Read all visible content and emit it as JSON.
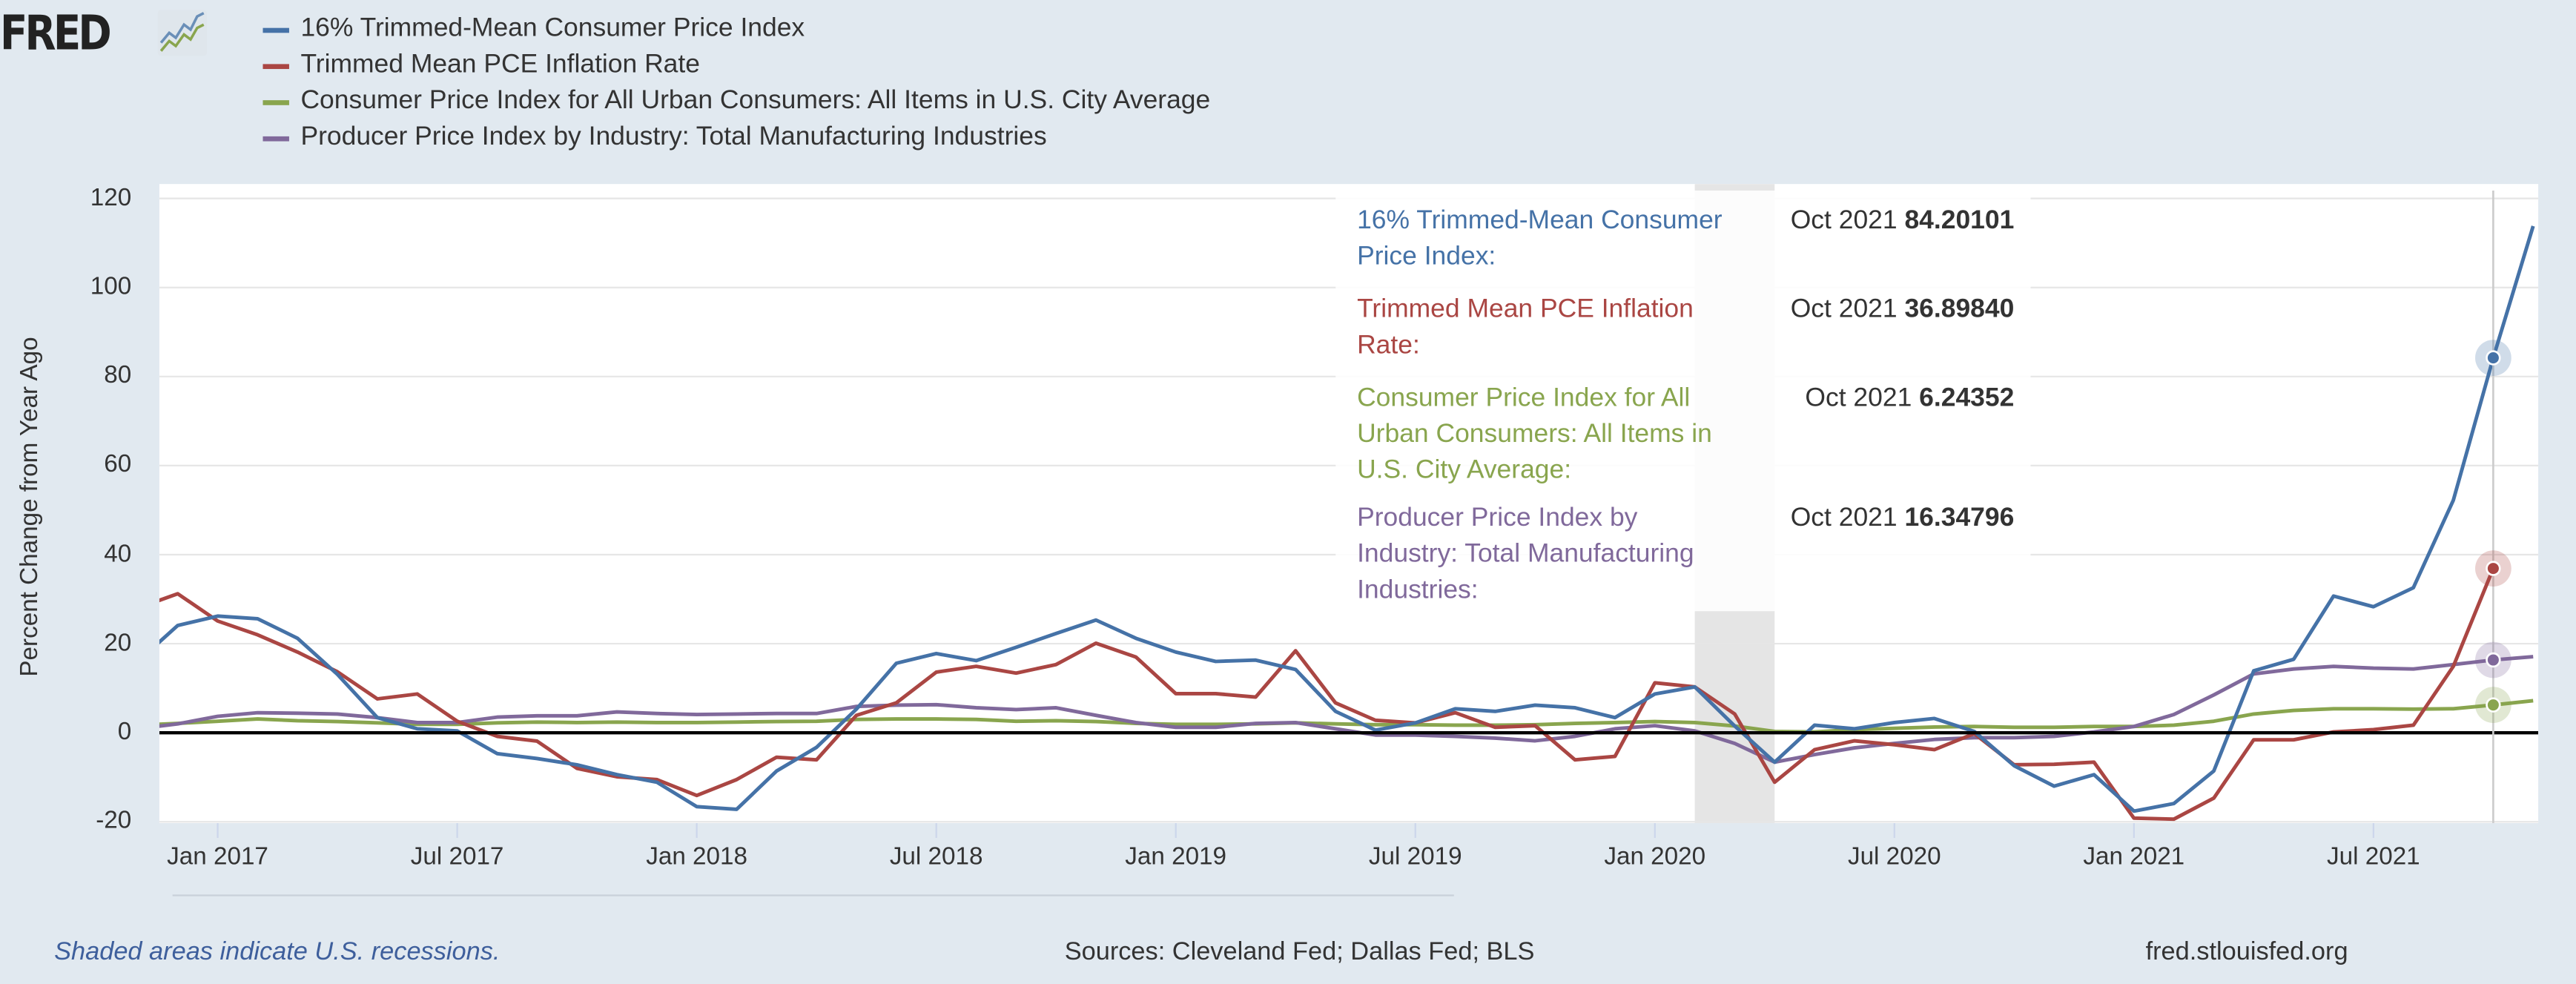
{
  "logo": {
    "text": "FRED"
  },
  "colors": {
    "blue": "#4572a7",
    "red": "#aa4643",
    "green": "#89a54e",
    "purple": "#80699b",
    "recession": "#e5e5e5",
    "background": "#e1e9f0"
  },
  "footer": {
    "recession_note": "Shaded areas indicate U.S. recessions.",
    "sources": "Sources: Cleveland Fed; Dallas Fed; BLS",
    "site": "fred.stlouisfed.org"
  },
  "tooltip": {
    "rows": [
      {
        "label": "16% Trimmed-Mean Consumer Price Index:",
        "date": "Oct 2021",
        "value": "84.20101"
      },
      {
        "label": "Trimmed Mean PCE Inflation Rate:",
        "date": "Oct 2021",
        "value": "36.89840"
      },
      {
        "label": "Consumer Price Index for All Urban Consumers: All Items in U.S. City Average:",
        "date": "Oct 2021",
        "value": "6.24352"
      },
      {
        "label": "Producer Price Index by Industry: Total Manufacturing Industries:",
        "date": "Oct 2021",
        "value": "16.34796"
      }
    ]
  },
  "chart_data": {
    "type": "line",
    "ylabel": "Percent Change from Year Ago",
    "ylim": [
      -20,
      120
    ],
    "yticks": [
      120,
      100,
      80,
      60,
      40,
      20,
      0,
      -20
    ],
    "xlim": [
      "2016-11",
      "2021-11"
    ],
    "xtick_labels": [
      "Jan 2017",
      "Jul 2017",
      "Jan 2018",
      "Jul 2018",
      "Jan 2019",
      "Jul 2019",
      "Jan 2020",
      "Jul 2020",
      "Jan 2021",
      "Jul 2021"
    ],
    "grid": "horizontal",
    "legend_position": "top-left",
    "zero_line": true,
    "recessions": [
      {
        "start": "2020-02",
        "end": "2020-04"
      }
    ],
    "highlight": "2021-10",
    "x": [
      "2016-11",
      "2016-12",
      "2017-01",
      "2017-02",
      "2017-03",
      "2017-04",
      "2017-05",
      "2017-06",
      "2017-07",
      "2017-08",
      "2017-09",
      "2017-10",
      "2017-11",
      "2017-12",
      "2018-01",
      "2018-02",
      "2018-03",
      "2018-04",
      "2018-05",
      "2018-06",
      "2018-07",
      "2018-08",
      "2018-09",
      "2018-10",
      "2018-11",
      "2018-12",
      "2019-01",
      "2019-02",
      "2019-03",
      "2019-04",
      "2019-05",
      "2019-06",
      "2019-07",
      "2019-08",
      "2019-09",
      "2019-10",
      "2019-11",
      "2019-12",
      "2020-01",
      "2020-02",
      "2020-03",
      "2020-04",
      "2020-05",
      "2020-06",
      "2020-07",
      "2020-08",
      "2020-09",
      "2020-10",
      "2020-11",
      "2020-12",
      "2021-01",
      "2021-02",
      "2021-03",
      "2021-04",
      "2021-05",
      "2021-06",
      "2021-07",
      "2021-08",
      "2021-09",
      "2021-10",
      "2021-11"
    ],
    "series": [
      {
        "name": "16% Trimmed-Mean Consumer Price Index",
        "color": "#4572a7",
        "values": [
          16,
          24.1,
          26.2,
          25.6,
          21.2,
          13.1,
          3.4,
          0.9,
          0.4,
          -4.7,
          -5.8,
          -7.2,
          -9.4,
          -11.1,
          -16.6,
          -17.2,
          -8.6,
          -3.3,
          5.3,
          15.6,
          17.8,
          16.2,
          19.2,
          22.3,
          25.3,
          21.2,
          18.1,
          16.0,
          16.3,
          14.2,
          4.8,
          0.6,
          2.2,
          5.4,
          4.8,
          6.2,
          5.6,
          3.4,
          8.7,
          10.3,
          1.5,
          -6.6,
          1.7,
          0.9,
          2.3,
          3.2,
          0.3,
          -7.4,
          -12.0,
          -9.4,
          -17.6,
          -15.9,
          -8.6,
          13.9,
          16.5,
          30.7,
          28.3,
          32.6,
          52.2,
          84.20101,
          113.8
        ]
      },
      {
        "name": "Trimmed Mean PCE Inflation Rate",
        "color": "#aa4643",
        "values": [
          28,
          31.2,
          25.1,
          22,
          18.1,
          13.7,
          7.6,
          8.7,
          2.6,
          -0.8,
          -1.9,
          -8,
          -9.9,
          -10.5,
          -14.1,
          -10.5,
          -5.5,
          -6.1,
          3.9,
          6.7,
          13.6,
          14.9,
          13.4,
          15.3,
          20.1,
          17,
          8.8,
          8.8,
          8,
          18.4,
          6.7,
          2.8,
          2.2,
          4.5,
          1.2,
          1.6,
          -6.1,
          -5.3,
          11.2,
          10.3,
          4.2,
          -11.1,
          -3.8,
          -1.8,
          -2.7,
          -3.8,
          -0.2,
          -7.2,
          -7.1,
          -6.6,
          -19.2,
          -19.4,
          -14.7,
          -1.6,
          -1.6,
          0.2,
          0.7,
          1.7,
          14.9,
          36.8984,
          null
        ]
      },
      {
        "name": "Consumer Price Index for All Urban Consumers: All Items in U.S. City Average",
        "color": "#89a54e",
        "values": [
          1.7,
          2.1,
          2.6,
          3.1,
          2.7,
          2.5,
          2.2,
          1.9,
          1.9,
          2.2,
          2.4,
          2.3,
          2.4,
          2.3,
          2.3,
          2.4,
          2.5,
          2.6,
          3.0,
          3.1,
          3.1,
          3.0,
          2.6,
          2.7,
          2.5,
          2.1,
          1.9,
          1.9,
          2.0,
          2.2,
          2.0,
          1.8,
          1.8,
          1.7,
          1.7,
          1.8,
          2.1,
          2.3,
          2.5,
          2.3,
          1.5,
          0.3,
          0.2,
          0.7,
          1.0,
          1.3,
          1.4,
          1.2,
          1.2,
          1.4,
          1.4,
          1.7,
          2.6,
          4.2,
          5.0,
          5.4,
          5.4,
          5.3,
          5.4,
          6.24352,
          7.2
        ]
      },
      {
        "name": "Producer Price Index by Industry: Total Manufacturing Industries",
        "color": "#80699b",
        "values": [
          0.9,
          2.0,
          3.7,
          4.5,
          4.4,
          4.2,
          3.4,
          2.3,
          2.3,
          3.5,
          3.8,
          3.8,
          4.7,
          4.3,
          4.1,
          4.2,
          4.3,
          4.3,
          5.9,
          6.2,
          6.3,
          5.6,
          5.2,
          5.6,
          3.9,
          2.3,
          1.2,
          1.2,
          2.1,
          2.3,
          0.9,
          -0.5,
          -0.5,
          -0.8,
          -1.2,
          -1.8,
          -0.8,
          0.9,
          1.6,
          0.4,
          -2.4,
          -6.6,
          -4.9,
          -3.4,
          -2.4,
          -1.5,
          -1.1,
          -1.1,
          -0.8,
          0.2,
          1.4,
          4.1,
          8.5,
          13.2,
          14.3,
          14.9,
          14.5,
          14.3,
          15.3,
          16.34796,
          17.1
        ]
      }
    ]
  }
}
